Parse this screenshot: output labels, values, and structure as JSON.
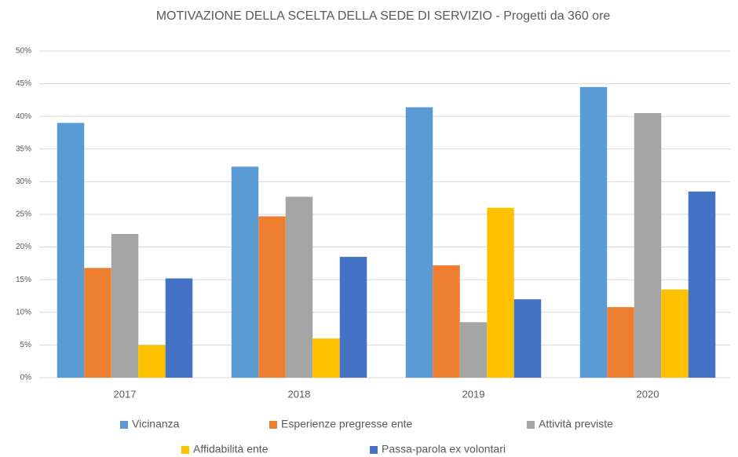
{
  "chart_data": {
    "type": "bar",
    "title": "MOTIVAZIONE DELLA SCELTA DELLA SEDE DI SERVIZIO - Progetti da 360 ore",
    "categories": [
      "2017",
      "2018",
      "2019",
      "2020"
    ],
    "series": [
      {
        "name": "Vicinanza",
        "color": "#5b9bd5",
        "values": [
          39,
          32.3,
          41.4,
          44.5
        ]
      },
      {
        "name": "Esperienze pregresse ente",
        "color": "#ed7d31",
        "values": [
          16.8,
          24.7,
          17.2,
          10.8
        ]
      },
      {
        "name": "Attività previste",
        "color": "#a5a5a5",
        "values": [
          22,
          27.7,
          8.5,
          40.5
        ]
      },
      {
        "name": "Affidabilità ente",
        "color": "#ffc000",
        "values": [
          5,
          6,
          26,
          13.5
        ]
      },
      {
        "name": "Passa-parola ex volontari",
        "color": "#4472c4",
        "values": [
          15.2,
          18.5,
          12,
          28.5
        ]
      }
    ],
    "ylim": [
      0,
      50
    ],
    "yticks": [
      {
        "value": 0,
        "label": "0%"
      },
      {
        "value": 5,
        "label": "5%"
      },
      {
        "value": 10,
        "label": "10%"
      },
      {
        "value": 15,
        "label": "15%"
      },
      {
        "value": 20,
        "label": "20%"
      },
      {
        "value": 25,
        "label": "25%"
      },
      {
        "value": 30,
        "label": "30%"
      },
      {
        "value": 35,
        "label": "35%"
      },
      {
        "value": 40,
        "label": "40%"
      },
      {
        "value": 45,
        "label": "45%"
      },
      {
        "value": 50,
        "label": "50%"
      }
    ],
    "grid": true,
    "legend": "bottom"
  }
}
